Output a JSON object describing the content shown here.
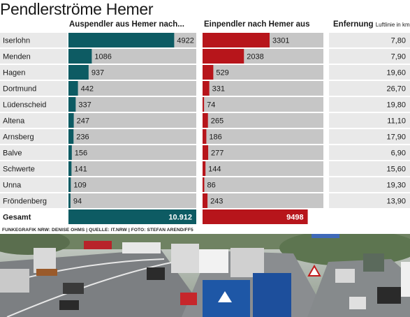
{
  "title": "Pendlerströme Hemer",
  "headers": {
    "out": "Auspendler aus Hemer nach...",
    "in": "Einpendler nach Hemer aus",
    "dist": "Enfernung",
    "dist_unit": "Luftlinie in km"
  },
  "colors": {
    "out": "#0d5b63",
    "in": "#b7151b",
    "row_label_bg": "#e9e9e9",
    "row_bar_bg": "#c6c6c6",
    "total_label_bg": "#ffffff"
  },
  "credit": "FUNKEGRAFIK NRW: DENISE OHMS | QUELLE: IT.NRW | FOTO: STEFAN AREND/FF5",
  "chart_data": {
    "type": "bar",
    "title": "Pendlerströme Hemer",
    "categories": [
      "Iserlohn",
      "Menden",
      "Hagen",
      "Dortmund",
      "Lüdenscheid",
      "Altena",
      "Arnsberg",
      "Balve",
      "Schwerte",
      "Unna",
      "Fröndenberg"
    ],
    "series": [
      {
        "name": "Auspendler aus Hemer nach...",
        "values": [
          4922,
          1086,
          937,
          442,
          337,
          247,
          236,
          156,
          141,
          109,
          94
        ]
      },
      {
        "name": "Einpendler nach Hemer aus",
        "values": [
          3301,
          2038,
          529,
          331,
          74,
          265,
          186,
          277,
          144,
          86,
          243
        ]
      }
    ],
    "value_labels": {
      "out": [
        "4922",
        "1086",
        "937",
        "442",
        "337",
        "247",
        "236",
        "156",
        "141",
        "109",
        "94"
      ],
      "in": [
        "3301",
        "2038",
        "529",
        "331",
        "74",
        "265",
        "186",
        "277",
        "144",
        "86",
        "243"
      ]
    },
    "distance_labels": [
      "7,80",
      "7,90",
      "19,60",
      "26,70",
      "19,80",
      "11,10",
      "17,90",
      "6,90",
      "15,60",
      "19,30",
      "13,90"
    ],
    "distance_km": [
      7.8,
      7.9,
      19.6,
      26.7,
      19.8,
      11.1,
      17.9,
      6.9,
      15.6,
      19.3,
      13.9
    ],
    "totals": {
      "label": "Gesamt",
      "out": "10.912",
      "in": "9498",
      "out_value": 10912,
      "in_value": 9498
    },
    "bar_max": 5950
  }
}
